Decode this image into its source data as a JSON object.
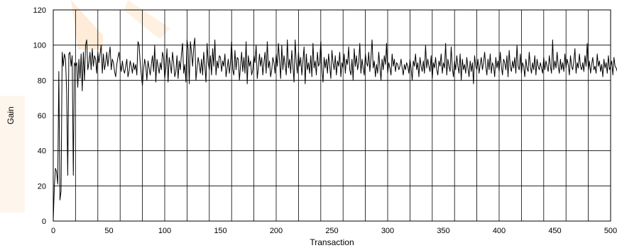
{
  "chart_data": {
    "type": "line",
    "title": "",
    "xlabel": "Transaction",
    "ylabel": "Gain",
    "xlim": [
      0,
      500
    ],
    "ylim": [
      0,
      120
    ],
    "x_ticks": [
      "0",
      "50",
      "100",
      "150",
      "200",
      "250",
      "300",
      "350",
      "400",
      "450",
      "500"
    ],
    "y_ticks": [
      "0",
      "20",
      "40",
      "60",
      "80",
      "100",
      "120"
    ],
    "grid": "horizontal and vertical",
    "legend": "none",
    "series": [
      {
        "color": "#000000",
        "x_start": 0,
        "x_step": 1,
        "values": [
          0,
          20,
          30,
          28,
          21,
          85,
          12,
          17,
          96,
          88,
          95,
          92,
          74,
          26,
          95,
          96,
          88,
          94,
          26,
          90,
          88,
          90,
          76,
          92,
          81,
          95,
          74,
          96,
          80,
          100,
          103,
          86,
          90,
          96,
          86,
          98,
          88,
          94,
          92,
          84,
          96,
          90,
          95,
          100,
          84,
          95,
          86,
          90,
          96,
          88,
          94,
          99,
          86,
          92,
          90,
          85,
          82,
          89,
          93,
          96,
          90,
          85,
          91,
          86,
          84,
          88,
          92,
          82,
          85,
          91,
          88,
          84,
          90,
          86,
          89,
          83,
          102,
          100,
          90,
          83,
          77,
          86,
          92,
          88,
          80,
          91,
          87,
          83,
          89,
          94,
          85,
          100,
          79,
          92,
          88,
          84,
          90,
          86,
          96,
          93,
          81,
          87,
          98,
          79,
          93,
          89,
          84,
          96,
          90,
          82,
          85,
          94,
          81,
          91,
          86,
          95,
          101,
          84,
          89,
          79,
          103,
          98,
          78,
          102,
          96,
          88,
          99,
          104,
          80,
          87,
          93,
          89,
          84,
          92,
          83,
          96,
          88,
          79,
          101,
          90,
          86,
          94,
          83,
          98,
          88,
          103,
          83,
          91,
          87,
          94,
          93,
          85,
          91,
          88,
          95,
          82,
          87,
          92,
          84,
          90,
          102,
          86,
          83,
          97,
          86,
          93,
          92,
          80,
          88,
          96,
          85,
          93,
          84,
          102,
          78,
          94,
          88,
          91,
          83,
          86,
          94,
          90,
          100,
          81,
          87,
          95,
          88,
          93,
          83,
          90,
          96,
          84,
          102,
          87,
          91,
          82,
          86,
          93,
          90,
          84,
          95,
          88,
          101,
          91,
          81,
          100,
          86,
          94,
          89,
          83,
          103,
          87,
          92,
          84,
          97,
          88,
          79,
          103,
          90,
          84,
          96,
          88,
          93,
          83,
          91,
          99,
          78,
          95,
          86,
          90,
          84,
          94,
          82,
          101,
          87,
          91,
          83,
          96,
          88,
          90,
          102,
          86,
          79,
          93,
          87,
          92,
          84,
          95,
          88,
          81,
          97,
          90,
          86,
          94,
          83,
          91,
          88,
          96,
          82,
          90,
          87,
          95,
          84,
          92,
          89,
          99,
          86,
          83,
          92,
          80,
          98,
          88,
          94,
          86,
          90,
          101,
          84,
          92,
          87,
          83,
          95,
          90,
          88,
          96,
          85,
          93,
          103,
          87,
          91,
          82,
          89,
          84,
          96,
          88,
          80,
          92,
          86,
          94,
          89,
          101,
          84,
          90,
          87,
          83,
          95,
          88,
          92,
          85,
          90,
          89,
          86,
          88,
          92,
          87,
          83,
          89,
          86,
          90,
          88,
          84,
          92,
          87,
          80,
          91,
          88,
          95,
          86,
          90,
          82,
          93,
          88,
          85,
          91,
          84,
          100,
          87,
          92,
          88,
          85,
          94,
          81,
          90,
          87,
          93,
          86,
          83,
          91,
          88,
          95,
          84,
          90,
          87,
          101,
          83,
          92,
          88,
          85,
          99,
          87,
          82,
          91,
          86,
          94,
          88,
          84,
          95,
          80,
          92,
          86,
          89,
          84,
          93,
          87,
          82,
          91,
          85,
          90,
          78,
          94,
          88,
          86,
          92,
          84,
          89,
          93,
          86,
          90,
          96,
          88,
          83,
          92,
          86,
          95,
          84,
          90,
          88,
          82,
          93,
          87,
          91,
          85,
          96,
          88,
          83,
          92,
          90,
          86,
          94,
          82,
          97,
          88,
          85,
          91,
          87,
          93,
          84,
          100,
          88,
          86,
          95,
          84,
          90,
          88,
          82,
          92,
          87,
          85,
          96,
          88,
          84,
          90,
          86,
          94,
          83,
          92,
          88,
          86,
          90,
          87,
          84,
          93,
          86,
          91,
          88,
          85,
          94,
          88,
          84,
          103,
          86,
          91,
          87,
          96,
          88,
          84,
          92,
          86,
          90,
          85,
          95,
          87,
          92,
          89,
          83,
          94,
          88,
          86,
          91,
          98,
          84,
          90,
          87,
          95,
          88,
          86,
          90,
          85,
          94,
          88,
          101,
          86,
          91,
          84,
          89,
          93,
          86,
          88,
          84,
          95,
          88,
          91,
          85,
          89,
          82,
          92,
          87,
          90,
          84,
          94,
          86,
          88,
          91,
          83,
          93,
          88,
          87,
          85
        ]
      }
    ]
  }
}
